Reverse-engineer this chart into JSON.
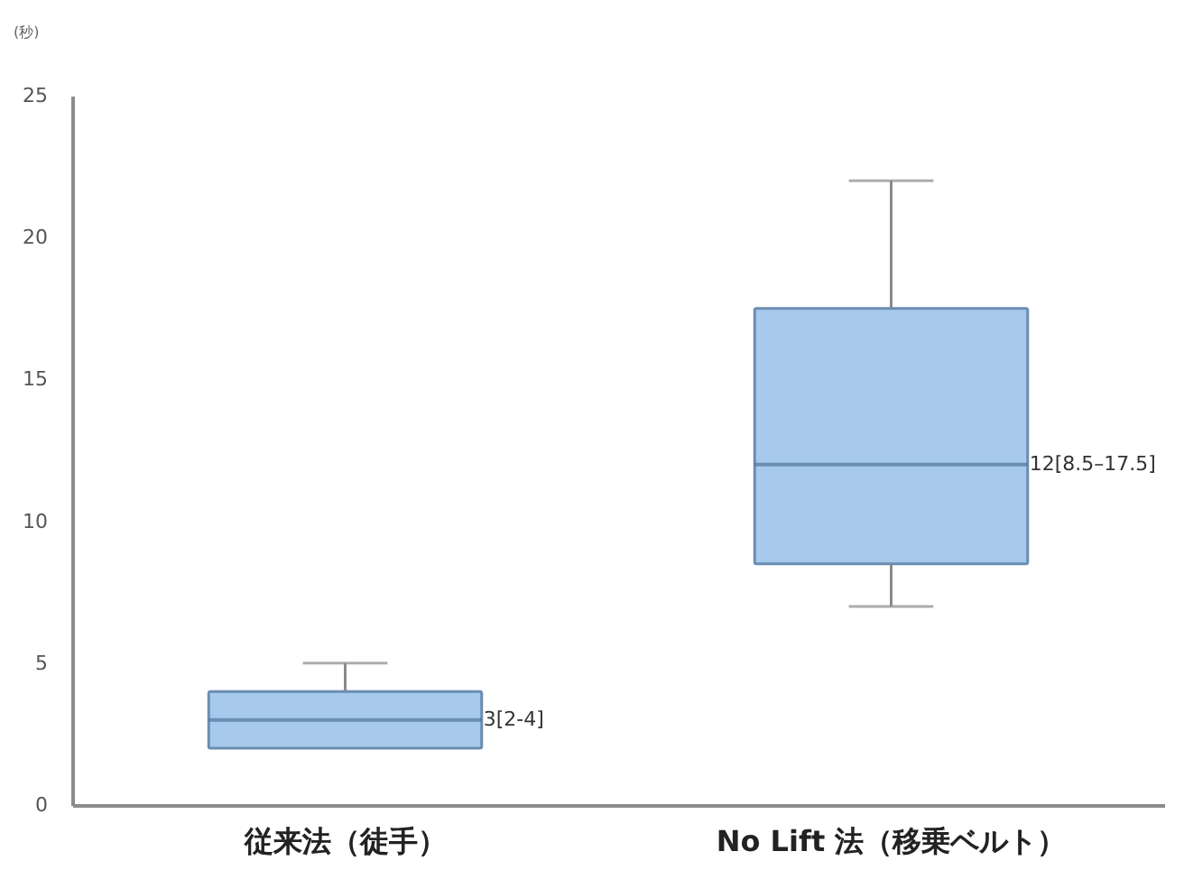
{
  "chart_data": {
    "type": "box",
    "ylabel": "(秒)",
    "categories": [
      "従来法（徒手）",
      "No Lift 法（移乗ベルト）"
    ],
    "series": [
      {
        "color": "#a6c9ec",
        "boxes": [
          {
            "low": 2,
            "q1": 2,
            "median": 3,
            "q3": 4,
            "high": 5
          },
          {
            "low": 7,
            "q1": 8.5,
            "median": 12,
            "q3": 17.5,
            "high": 22
          }
        ],
        "value_labels": [
          "3[2-4]",
          "12[8.5–17.5]"
        ]
      }
    ],
    "ylim": [
      0,
      25
    ],
    "yticks": [
      0,
      5,
      10,
      15,
      20,
      25
    ],
    "grid": false
  }
}
